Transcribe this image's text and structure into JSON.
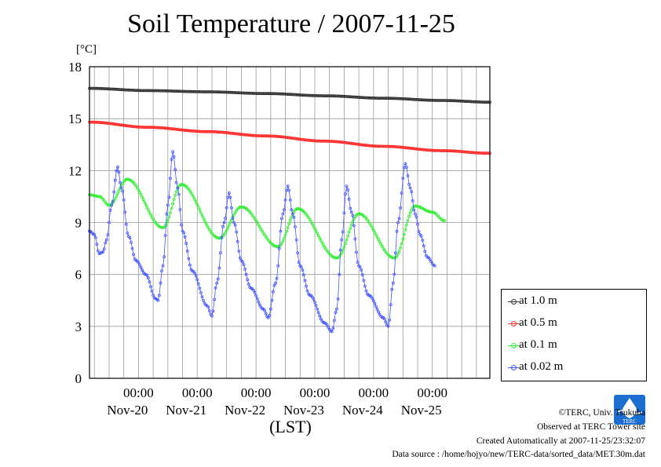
{
  "chart_data": {
    "type": "line",
    "title": "Soil Temperature / 2007-11-25",
    "ylabel": "[°C]",
    "xlabel": "(LST)",
    "ylim": [
      0,
      18
    ],
    "yticks": [
      0,
      3,
      6,
      9,
      12,
      15,
      18
    ],
    "xlim": [
      "2007-11-19T04:00",
      "2007-11-25T23:30"
    ],
    "x_tick_times": [
      "00:00",
      "00:00",
      "00:00",
      "00:00",
      "00:00",
      "00:00"
    ],
    "x_tick_dates": [
      "Nov-20",
      "Nov-21",
      "Nov-22",
      "Nov-23",
      "Nov-24",
      "Nov-25"
    ],
    "x_tick_positions": [
      "2007-11-20T00:00",
      "2007-11-21T00:00",
      "2007-11-22T00:00",
      "2007-11-23T00:00",
      "2007-11-24T00:00",
      "2007-11-25T00:00"
    ],
    "grid": true,
    "legend_position": "right",
    "series": [
      {
        "name": "at 1.0 m",
        "color": "#333333",
        "points": [
          [
            "2007-11-19T04:00",
            16.75
          ],
          [
            "2007-11-20T04:00",
            16.62
          ],
          [
            "2007-11-21T04:00",
            16.55
          ],
          [
            "2007-11-22T04:00",
            16.45
          ],
          [
            "2007-11-23T04:00",
            16.32
          ],
          [
            "2007-11-24T04:00",
            16.18
          ],
          [
            "2007-11-25T04:00",
            16.05
          ],
          [
            "2007-11-25T23:30",
            15.95
          ]
        ]
      },
      {
        "name": "at 0.5 m",
        "color": "#ff2a2a",
        "points": [
          [
            "2007-11-19T04:00",
            14.8
          ],
          [
            "2007-11-20T04:00",
            14.5
          ],
          [
            "2007-11-21T04:00",
            14.25
          ],
          [
            "2007-11-22T04:00",
            14.0
          ],
          [
            "2007-11-23T04:00",
            13.7
          ],
          [
            "2007-11-24T04:00",
            13.4
          ],
          [
            "2007-11-25T04:00",
            13.15
          ],
          [
            "2007-11-25T23:30",
            13.0
          ]
        ]
      },
      {
        "name": "at 0.1 m",
        "color": "#33ee33",
        "points": [
          [
            "2007-11-19T04:00",
            10.6
          ],
          [
            "2007-11-19T08:00",
            10.5
          ],
          [
            "2007-11-19T12:00",
            10.0
          ],
          [
            "2007-11-19T19:30",
            11.5
          ],
          [
            "2007-11-20T10:00",
            8.7
          ],
          [
            "2007-11-20T17:30",
            11.2
          ],
          [
            "2007-11-21T09:00",
            8.1
          ],
          [
            "2007-11-21T18:00",
            9.9
          ],
          [
            "2007-11-22T09:00",
            7.6
          ],
          [
            "2007-11-22T17:00",
            9.8
          ],
          [
            "2007-11-23T09:00",
            6.95
          ],
          [
            "2007-11-23T18:00",
            9.5
          ],
          [
            "2007-11-24T08:30",
            6.95
          ],
          [
            "2007-11-24T17:00",
            9.95
          ],
          [
            "2007-11-25T00:00",
            9.6
          ],
          [
            "2007-11-25T05:00",
            9.1
          ]
        ]
      },
      {
        "name": "at 0.02 m",
        "color": "#4455ff",
        "points": [
          [
            "2007-11-19T04:00",
            8.5
          ],
          [
            "2007-11-19T06:00",
            8.3
          ],
          [
            "2007-11-19T08:00",
            7.2
          ],
          [
            "2007-11-19T09:30",
            7.3
          ],
          [
            "2007-11-19T11:00",
            8.0
          ],
          [
            "2007-11-19T13:00",
            10.0
          ],
          [
            "2007-11-19T15:30",
            12.2
          ],
          [
            "2007-11-19T17:00",
            11.0
          ],
          [
            "2007-11-19T20:00",
            8.2
          ],
          [
            "2007-11-19T23:00",
            6.8
          ],
          [
            "2007-11-20T03:00",
            6.0
          ],
          [
            "2007-11-20T07:00",
            4.6
          ],
          [
            "2007-11-20T08:00",
            4.5
          ],
          [
            "2007-11-20T10:00",
            6.5
          ],
          [
            "2007-11-20T12:00",
            10.0
          ],
          [
            "2007-11-20T14:00",
            13.1
          ],
          [
            "2007-11-20T16:00",
            11.0
          ],
          [
            "2007-11-20T18:00",
            8.5
          ],
          [
            "2007-11-20T22:00",
            6.2
          ],
          [
            "2007-11-21T04:00",
            4.2
          ],
          [
            "2007-11-21T06:00",
            3.6
          ],
          [
            "2007-11-21T08:00",
            5.5
          ],
          [
            "2007-11-21T11:00",
            9.0
          ],
          [
            "2007-11-21T13:00",
            10.7
          ],
          [
            "2007-11-21T15:00",
            9.0
          ],
          [
            "2007-11-21T18:00",
            6.8
          ],
          [
            "2007-11-21T22:00",
            5.2
          ],
          [
            "2007-11-22T03:00",
            4.0
          ],
          [
            "2007-11-22T05:00",
            3.5
          ],
          [
            "2007-11-22T08:00",
            5.5
          ],
          [
            "2007-11-22T11:00",
            9.5
          ],
          [
            "2007-11-22T13:00",
            11.1
          ],
          [
            "2007-11-22T15:00",
            9.5
          ],
          [
            "2007-11-22T18:00",
            6.5
          ],
          [
            "2007-11-22T22:00",
            4.8
          ],
          [
            "2007-11-23T04:00",
            3.2
          ],
          [
            "2007-11-23T07:00",
            2.7
          ],
          [
            "2007-11-23T09:00",
            4.0
          ],
          [
            "2007-11-23T11:00",
            8.0
          ],
          [
            "2007-11-23T13:00",
            11.1
          ],
          [
            "2007-11-23T15:00",
            9.6
          ],
          [
            "2007-11-23T18:00",
            6.5
          ],
          [
            "2007-11-23T22:00",
            4.8
          ],
          [
            "2007-11-24T04:00",
            3.5
          ],
          [
            "2007-11-24T06:00",
            3.0
          ],
          [
            "2007-11-24T08:00",
            5.5
          ],
          [
            "2007-11-24T10:00",
            9.0
          ],
          [
            "2007-11-24T13:00",
            12.4
          ],
          [
            "2007-11-24T15:00",
            11.0
          ],
          [
            "2007-11-24T17:00",
            9.5
          ],
          [
            "2007-11-24T19:00",
            8.3
          ],
          [
            "2007-11-24T22:00",
            7.0
          ],
          [
            "2007-11-25T01:00",
            6.5
          ]
        ]
      }
    ]
  },
  "footer": {
    "copyright": "©TERC, Univ. Tsukuba",
    "observed": "Observed at TERC Tower site",
    "created": "Created Automatically at 2007-11-25/23:32:07",
    "source": "Data source : /home/hojyo/new/TERC-data/sorted_data/MET.30m.dat",
    "logo_text": "TERC"
  }
}
